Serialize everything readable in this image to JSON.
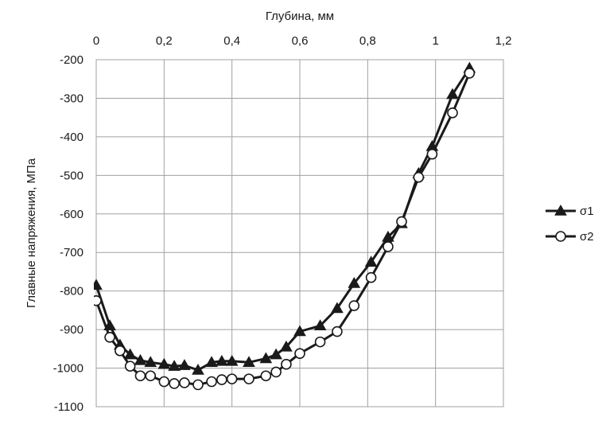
{
  "chart_data": {
    "type": "line",
    "xlabel": "Глубина, мм",
    "ylabel": "Главные напряжения, МПа",
    "xlim": [
      0,
      1.2
    ],
    "ylim": [
      -1100,
      -200
    ],
    "x_ticks": [
      "0",
      "0,2",
      "0,4",
      "0,6",
      "0,8",
      "1",
      "1,2"
    ],
    "y_ticks": [
      "-200",
      "-300",
      "-400",
      "-500",
      "-600",
      "-700",
      "-800",
      "-900",
      "-1000",
      "-1100"
    ],
    "x_axis_position": "top",
    "grid": true,
    "legend": "right",
    "series": [
      {
        "name": "σ1",
        "marker": "filled-triangle",
        "x": [
          0,
          0.04,
          0.07,
          0.1,
          0.13,
          0.16,
          0.2,
          0.23,
          0.26,
          0.3,
          0.34,
          0.37,
          0.4,
          0.45,
          0.5,
          0.53,
          0.56,
          0.6,
          0.66,
          0.71,
          0.76,
          0.81,
          0.86,
          0.9,
          0.95,
          0.99,
          1.05,
          1.1
        ],
        "values": [
          -785,
          -890,
          -940,
          -965,
          -980,
          -985,
          -990,
          -995,
          -993,
          -1005,
          -985,
          -982,
          -982,
          -985,
          -975,
          -965,
          -945,
          -905,
          -890,
          -845,
          -780,
          -725,
          -660,
          -625,
          -495,
          -425,
          -290,
          -222
        ]
      },
      {
        "name": "σ2",
        "marker": "open-circle",
        "x": [
          0,
          0.04,
          0.07,
          0.1,
          0.13,
          0.16,
          0.2,
          0.23,
          0.26,
          0.3,
          0.34,
          0.37,
          0.4,
          0.45,
          0.5,
          0.53,
          0.56,
          0.6,
          0.66,
          0.71,
          0.76,
          0.81,
          0.86,
          0.9,
          0.95,
          0.99,
          1.05,
          1.1
        ],
        "values": [
          -825,
          -920,
          -955,
          -995,
          -1020,
          -1020,
          -1035,
          -1040,
          -1038,
          -1043,
          -1035,
          -1030,
          -1028,
          -1028,
          -1020,
          -1010,
          -990,
          -962,
          -932,
          -905,
          -838,
          -765,
          -685,
          -620,
          -505,
          -445,
          -338,
          -235
        ]
      }
    ]
  }
}
